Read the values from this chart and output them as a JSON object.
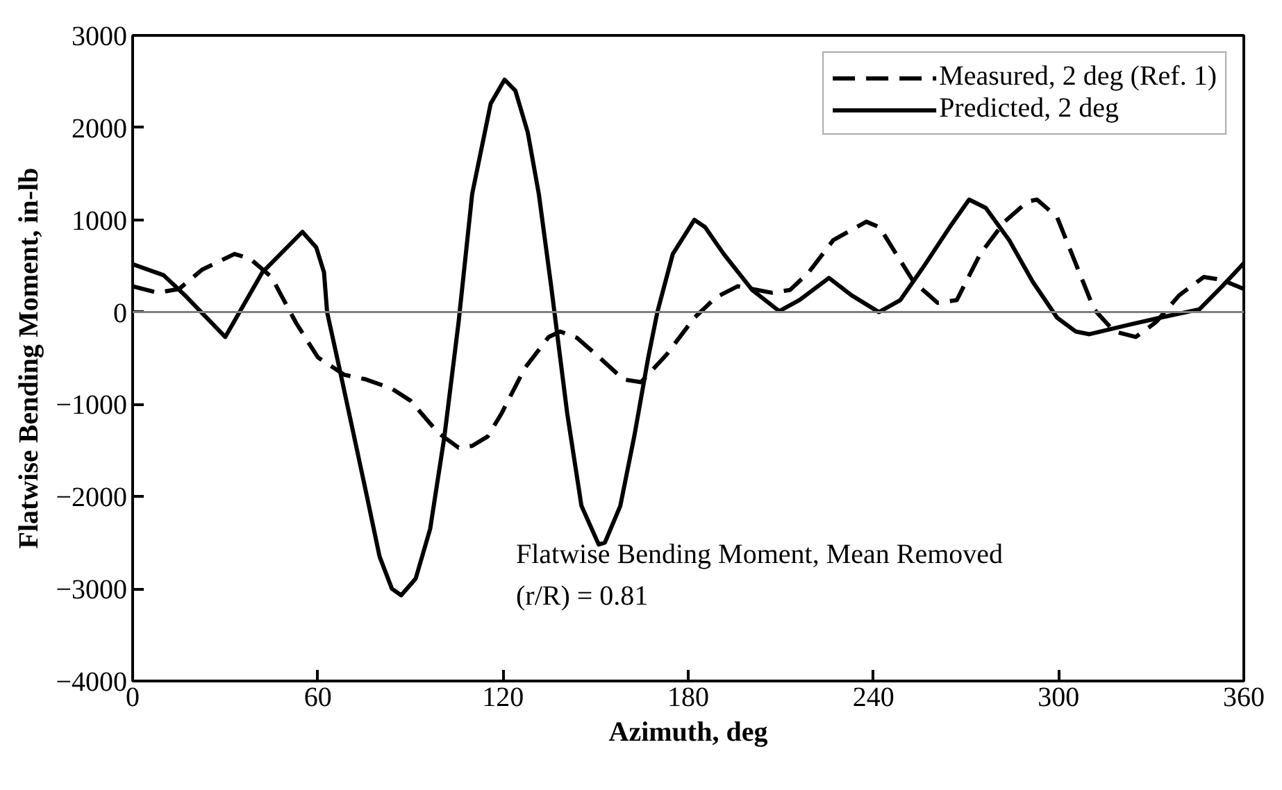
{
  "chart_data": {
    "type": "line",
    "xlabel": "Azimuth, deg",
    "ylabel": "Flatwise Bending Moment, in-lb",
    "xlim": [
      0,
      360
    ],
    "xticks": [
      0,
      60,
      120,
      180,
      240,
      300,
      360
    ],
    "ylim": [
      -4000,
      3000
    ],
    "yticks": [
      -4000,
      -3000,
      -2000,
      -1000,
      0,
      1000,
      2000,
      3000
    ],
    "grid": false,
    "legend": "top right",
    "ref_lines": [
      {
        "axis": "y",
        "value": 0,
        "color": "#808080"
      }
    ],
    "annotations": [
      "Flatwise Bending Moment, Mean Removed",
      "(r/R) = 0.81"
    ],
    "series": [
      {
        "name": "Measured, 2 deg (Ref. 1)",
        "color": "#000000",
        "line_style": "dashed",
        "x": [
          0,
          8,
          15,
          22.5,
          33,
          38,
          45,
          48.5,
          53,
          60,
          68.6,
          75.6,
          84,
          90,
          99,
          105.6,
          110,
          115,
          119.5,
          127,
          134.8,
          138.5,
          144,
          151.8,
          159,
          164.7,
          173,
          182,
          189,
          196,
          207,
          213,
          219,
          227,
          237.7,
          242,
          247,
          253,
          260.8,
          267,
          274.6,
          282.5,
          290,
          293,
          299.5,
          305.5,
          311.5,
          318,
          325,
          331.5,
          339,
          347,
          353,
          360
        ],
        "values": [
          280,
          210,
          250,
          460,
          630,
          580,
          380,
          160,
          -120,
          -490,
          -680,
          -730,
          -830,
          -960,
          -1310,
          -1470,
          -1450,
          -1350,
          -1100,
          -610,
          -270,
          -210,
          -280,
          -510,
          -730,
          -760,
          -460,
          -60,
          160,
          280,
          210,
          240,
          430,
          780,
          980,
          920,
          650,
          330,
          100,
          130,
          630,
          980,
          1200,
          1220,
          1030,
          530,
          30,
          -210,
          -270,
          -110,
          180,
          380,
          350,
          250
        ]
      },
      {
        "name": "Predicted, 2 deg",
        "color": "#000000",
        "line_style": "solid",
        "x": [
          0,
          10,
          17,
          30,
          42,
          55,
          59.5,
          62,
          63,
          67,
          71.5,
          75.6,
          80,
          84,
          87,
          91.7,
          96.4,
          101,
          105.6,
          110,
          116,
          120.5,
          124,
          128,
          131.6,
          135.6,
          140.8,
          145.4,
          151,
          153,
          158,
          162.5,
          167,
          170,
          175,
          182,
          185.5,
          191.5,
          200.7,
          209.5,
          216,
          225.6,
          233,
          241.8,
          248.7,
          256,
          264.7,
          271,
          276.4,
          284,
          291.6,
          299.5,
          305.5,
          310,
          322.5,
          333,
          345.6,
          353,
          360
        ],
        "values": [
          520,
          400,
          180,
          -270,
          430,
          870,
          700,
          430,
          0,
          -610,
          -1310,
          -1950,
          -2650,
          -3000,
          -3070,
          -2890,
          -2350,
          -1350,
          -110,
          1280,
          2260,
          2520,
          2400,
          1950,
          1280,
          280,
          -1100,
          -2100,
          -2520,
          -2500,
          -2100,
          -1350,
          -500,
          0,
          630,
          1000,
          920,
          630,
          240,
          10,
          130,
          370,
          180,
          0,
          130,
          480,
          920,
          1220,
          1130,
          780,
          330,
          -60,
          -210,
          -240,
          -140,
          -60,
          30,
          280,
          530
        ]
      }
    ]
  }
}
